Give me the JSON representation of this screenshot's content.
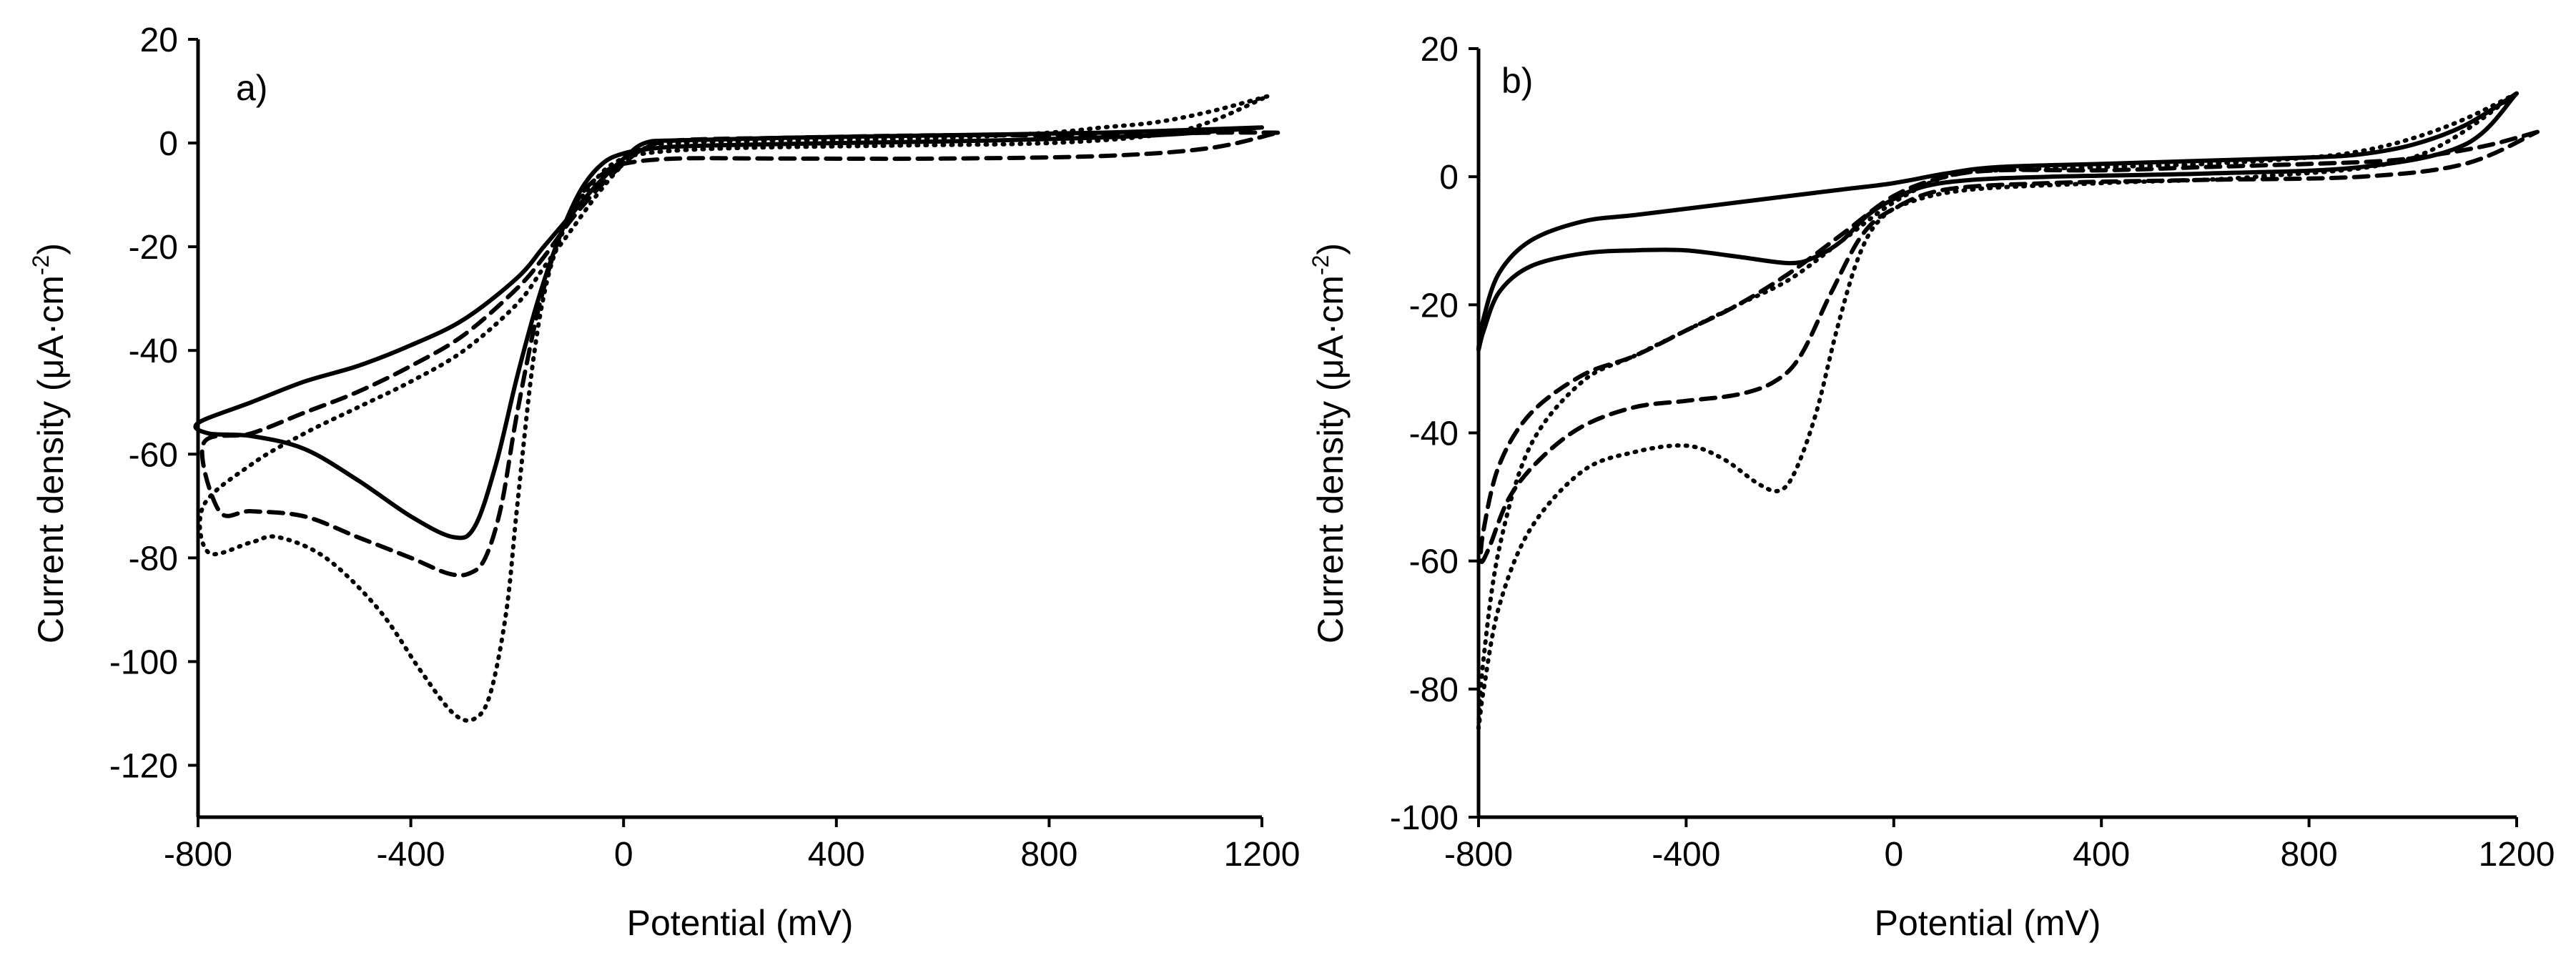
{
  "chart_data": [
    {
      "type": "line",
      "panel_label": "a)",
      "xlabel": "Potential (mV)",
      "ylabel_main": "Current density (μA·cm",
      "ylabel_sup": "-2",
      "ylabel_close": ")",
      "xlim": [
        -800,
        1200
      ],
      "ylim": [
        -130,
        20
      ],
      "xticks": [
        -800,
        -400,
        0,
        400,
        800,
        1200
      ],
      "xtick_labels": [
        "-800",
        "-400",
        "0",
        "400",
        "800",
        "1200"
      ],
      "yticks": [
        20,
        0,
        -20,
        -40,
        -60,
        -80,
        -100,
        -120
      ],
      "ytick_labels": [
        "20",
        "0",
        "-20",
        "-40",
        "-60",
        "-80",
        "-100",
        "-120"
      ],
      "series": [
        {
          "name": "solid",
          "style": "solid",
          "points": [
            [
              1200,
              3
            ],
            [
              900,
              2
            ],
            [
              600,
              1.5
            ],
            [
              300,
              1
            ],
            [
              100,
              0.5
            ],
            [
              40,
              0
            ],
            [
              0,
              -3
            ],
            [
              -50,
              -8
            ],
            [
              -100,
              -14
            ],
            [
              -150,
              -20
            ],
            [
              -200,
              -26
            ],
            [
              -300,
              -34
            ],
            [
              -400,
              -39
            ],
            [
              -500,
              -43
            ],
            [
              -600,
              -46
            ],
            [
              -700,
              -50
            ],
            [
              -800,
              -54
            ],
            [
              -780,
              -56
            ],
            [
              -700,
              -56.5
            ],
            [
              -600,
              -59
            ],
            [
              -500,
              -65
            ],
            [
              -400,
              -72
            ],
            [
              -320,
              -76
            ],
            [
              -280,
              -74
            ],
            [
              -240,
              -62
            ],
            [
              -200,
              -45
            ],
            [
              -160,
              -30
            ],
            [
              -120,
              -18
            ],
            [
              -80,
              -9
            ],
            [
              -40,
              -4
            ],
            [
              0,
              -2
            ],
            [
              60,
              -1
            ],
            [
              150,
              -0.5
            ],
            [
              400,
              0
            ],
            [
              700,
              0.5
            ],
            [
              1000,
              1.5
            ],
            [
              1200,
              3
            ]
          ]
        },
        {
          "name": "dashed",
          "style": "dashed",
          "points": [
            [
              1230,
              2
            ],
            [
              1100,
              2
            ],
            [
              900,
              1.5
            ],
            [
              600,
              1.5
            ],
            [
              300,
              1
            ],
            [
              100,
              0.5
            ],
            [
              40,
              -1
            ],
            [
              0,
              -4
            ],
            [
              -50,
              -9
            ],
            [
              -100,
              -15
            ],
            [
              -150,
              -22
            ],
            [
              -200,
              -28
            ],
            [
              -300,
              -37
            ],
            [
              -400,
              -43
            ],
            [
              -500,
              -48
            ],
            [
              -600,
              -52
            ],
            [
              -700,
              -56
            ],
            [
              -790,
              -58
            ],
            [
              -760,
              -71
            ],
            [
              -700,
              -71
            ],
            [
              -600,
              -72
            ],
            [
              -500,
              -76
            ],
            [
              -400,
              -80
            ],
            [
              -330,
              -83
            ],
            [
              -290,
              -83
            ],
            [
              -260,
              -80
            ],
            [
              -230,
              -70
            ],
            [
              -200,
              -52
            ],
            [
              -160,
              -32
            ],
            [
              -120,
              -18
            ],
            [
              -80,
              -10
            ],
            [
              -40,
              -6
            ],
            [
              0,
              -4
            ],
            [
              100,
              -3
            ],
            [
              300,
              -3
            ],
            [
              600,
              -3
            ],
            [
              900,
              -2.5
            ],
            [
              1100,
              -1
            ],
            [
              1230,
              2
            ]
          ]
        },
        {
          "name": "dotted",
          "style": "dotted",
          "points": [
            [
              1210,
              9
            ],
            [
              1100,
              6
            ],
            [
              1000,
              4
            ],
            [
              900,
              3
            ],
            [
              800,
              2
            ],
            [
              600,
              1
            ],
            [
              300,
              0.5
            ],
            [
              100,
              0
            ],
            [
              40,
              -1
            ],
            [
              0,
              -4
            ],
            [
              -50,
              -10
            ],
            [
              -100,
              -17
            ],
            [
              -150,
              -24
            ],
            [
              -200,
              -31
            ],
            [
              -300,
              -40
            ],
            [
              -400,
              -46
            ],
            [
              -500,
              -51
            ],
            [
              -600,
              -56
            ],
            [
              -700,
              -62
            ],
            [
              -790,
              -70
            ],
            [
              -780,
              -79
            ],
            [
              -700,
              -77
            ],
            [
              -650,
              -76
            ],
            [
              -560,
              -80
            ],
            [
              -460,
              -90
            ],
            [
              -380,
              -102
            ],
            [
              -320,
              -110
            ],
            [
              -280,
              -111
            ],
            [
              -250,
              -106
            ],
            [
              -220,
              -90
            ],
            [
              -200,
              -70
            ],
            [
              -170,
              -42
            ],
            [
              -140,
              -25
            ],
            [
              -100,
              -14
            ],
            [
              -60,
              -8
            ],
            [
              -20,
              -4
            ],
            [
              40,
              -2
            ],
            [
              200,
              -1
            ],
            [
              500,
              -0.5
            ],
            [
              800,
              0
            ],
            [
              1000,
              1.5
            ],
            [
              1100,
              4
            ],
            [
              1210,
              9
            ]
          ]
        }
      ]
    },
    {
      "type": "line",
      "panel_label": "b)",
      "xlabel": "Potential (mV)",
      "ylabel_main": "Current density (μA·cm",
      "ylabel_sup": "-2",
      "ylabel_close": ")",
      "xlim": [
        -800,
        1200
      ],
      "ylim": [
        -100,
        20
      ],
      "xticks": [
        -800,
        -400,
        0,
        400,
        800,
        1200
      ],
      "xtick_labels": [
        "-800",
        "-400",
        "0",
        "400",
        "800",
        "1200"
      ],
      "yticks": [
        20,
        0,
        -20,
        -40,
        -60,
        -80,
        -100
      ],
      "ytick_labels": [
        "20",
        "0",
        "-20",
        "-40",
        "-60",
        "-80",
        "-100"
      ],
      "series": [
        {
          "name": "solid",
          "style": "solid",
          "points": [
            [
              1200,
              13
            ],
            [
              1100,
              8
            ],
            [
              1000,
              5
            ],
            [
              900,
              3.5
            ],
            [
              800,
              3
            ],
            [
              600,
              2.5
            ],
            [
              400,
              2
            ],
            [
              200,
              1.5
            ],
            [
              100,
              0.5
            ],
            [
              0,
              -1
            ],
            [
              -100,
              -2
            ],
            [
              -200,
              -3
            ],
            [
              -300,
              -4
            ],
            [
              -400,
              -5
            ],
            [
              -500,
              -6
            ],
            [
              -600,
              -7
            ],
            [
              -700,
              -10
            ],
            [
              -760,
              -15
            ],
            [
              -790,
              -22
            ],
            [
              -800,
              -27
            ],
            [
              -790,
              -24
            ],
            [
              -760,
              -18
            ],
            [
              -700,
              -14
            ],
            [
              -600,
              -12
            ],
            [
              -500,
              -11.5
            ],
            [
              -400,
              -11.5
            ],
            [
              -300,
              -12.5
            ],
            [
              -200,
              -13.5
            ],
            [
              -150,
              -12.5
            ],
            [
              -100,
              -10
            ],
            [
              -50,
              -6
            ],
            [
              0,
              -3.5
            ],
            [
              60,
              -1.5
            ],
            [
              150,
              -0.5
            ],
            [
              300,
              0
            ],
            [
              600,
              0.5
            ],
            [
              900,
              1.5
            ],
            [
              1100,
              5
            ],
            [
              1200,
              13
            ]
          ]
        },
        {
          "name": "dashed",
          "style": "dashed",
          "points": [
            [
              1240,
              7
            ],
            [
              1150,
              5
            ],
            [
              1050,
              3.5
            ],
            [
              950,
              2.5
            ],
            [
              800,
              2
            ],
            [
              600,
              1.5
            ],
            [
              400,
              1
            ],
            [
              200,
              1
            ],
            [
              100,
              0
            ],
            [
              0,
              -3
            ],
            [
              -100,
              -9
            ],
            [
              -200,
              -15
            ],
            [
              -300,
              -20
            ],
            [
              -400,
              -24
            ],
            [
              -500,
              -28
            ],
            [
              -600,
              -31
            ],
            [
              -700,
              -37
            ],
            [
              -760,
              -45
            ],
            [
              -790,
              -55
            ],
            [
              -795,
              -60
            ],
            [
              -780,
              -58
            ],
            [
              -740,
              -50
            ],
            [
              -680,
              -44
            ],
            [
              -600,
              -39
            ],
            [
              -500,
              -36
            ],
            [
              -400,
              -35
            ],
            [
              -300,
              -34
            ],
            [
              -230,
              -32
            ],
            [
              -180,
              -28
            ],
            [
              -120,
              -18
            ],
            [
              -60,
              -9
            ],
            [
              0,
              -5
            ],
            [
              100,
              -2
            ],
            [
              300,
              -1
            ],
            [
              600,
              -0.5
            ],
            [
              900,
              0
            ],
            [
              1100,
              2
            ],
            [
              1240,
              7
            ]
          ]
        },
        {
          "name": "dotted",
          "style": "dotted",
          "points": [
            [
              1200,
              13
            ],
            [
              1100,
              9
            ],
            [
              1000,
              6
            ],
            [
              900,
              4
            ],
            [
              800,
              3
            ],
            [
              600,
              2
            ],
            [
              400,
              1.5
            ],
            [
              200,
              1
            ],
            [
              100,
              0
            ],
            [
              0,
              -4
            ],
            [
              -100,
              -10
            ],
            [
              -200,
              -16
            ],
            [
              -300,
              -20
            ],
            [
              -400,
              -24
            ],
            [
              -500,
              -28
            ],
            [
              -600,
              -32
            ],
            [
              -700,
              -42
            ],
            [
              -760,
              -58
            ],
            [
              -790,
              -75
            ],
            [
              -800,
              -86
            ],
            [
              -790,
              -80
            ],
            [
              -760,
              -67
            ],
            [
              -700,
              -55
            ],
            [
              -600,
              -46
            ],
            [
              -500,
              -43
            ],
            [
              -400,
              -42
            ],
            [
              -330,
              -44
            ],
            [
              -260,
              -48
            ],
            [
              -220,
              -49
            ],
            [
              -190,
              -46
            ],
            [
              -150,
              -37
            ],
            [
              -110,
              -24
            ],
            [
              -70,
              -13
            ],
            [
              -30,
              -7
            ],
            [
              30,
              -4
            ],
            [
              150,
              -2
            ],
            [
              400,
              -1
            ],
            [
              700,
              0
            ],
            [
              1000,
              3
            ],
            [
              1200,
              13
            ]
          ]
        }
      ]
    }
  ]
}
